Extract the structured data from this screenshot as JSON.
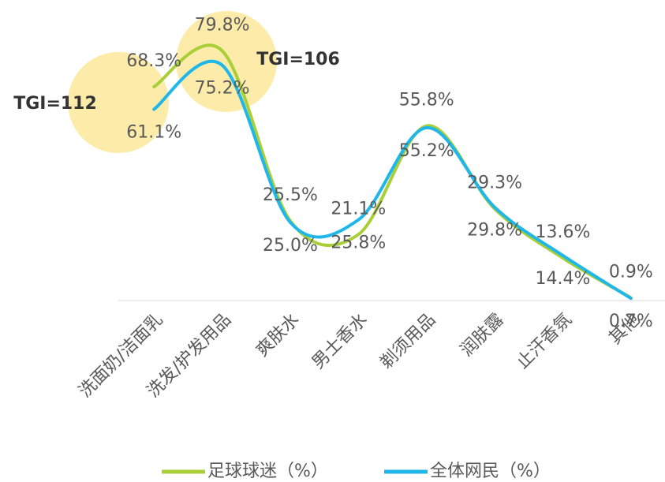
{
  "chart_data": {
    "type": "line",
    "categories": [
      "洗面奶/洁面乳",
      "洗发/护发用品",
      "爽肤水",
      "男士香水",
      "剃须用品",
      "润肤露",
      "止汗香氛",
      "其他"
    ],
    "series": [
      {
        "name": "足球球迷（%）",
        "color": "#a9cf38",
        "values": [
          68.3,
          79.8,
          25.5,
          21.1,
          55.8,
          29.3,
          13.6,
          0.9
        ],
        "value_labels": [
          "68.3%",
          "79.8%",
          "25.5%",
          "21.1%",
          "55.8%",
          "29.3%",
          "13.6%",
          "0.9%"
        ]
      },
      {
        "name": "全体网民（%）",
        "color": "#1fb7ea",
        "values": [
          61.1,
          75.2,
          25.0,
          25.8,
          55.2,
          29.8,
          14.4,
          0.7
        ],
        "value_labels": [
          "61.1%",
          "75.2%",
          "25.0%",
          "25.8%",
          "55.2%",
          "29.8%",
          "14.4%",
          "0.7%"
        ]
      }
    ],
    "annotations": [
      "TGI=112",
      "TGI=106"
    ],
    "ylim": [
      0,
      96
    ],
    "grid": false
  }
}
